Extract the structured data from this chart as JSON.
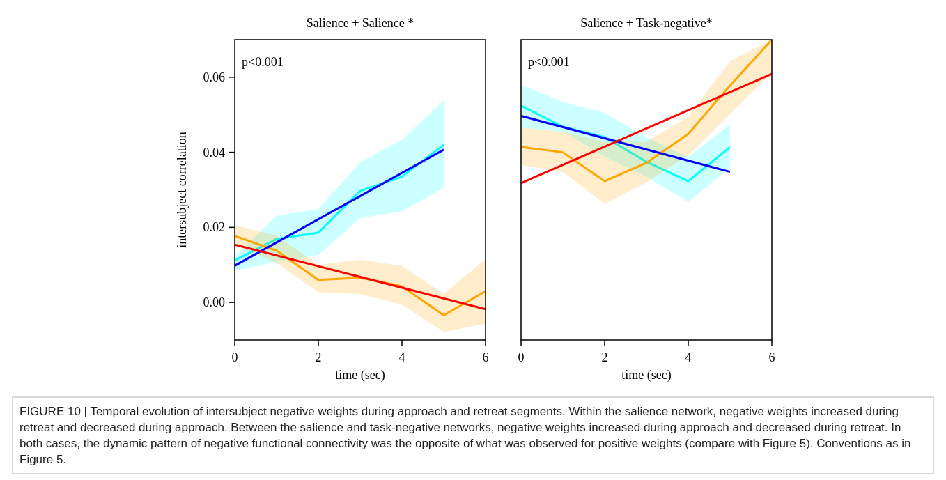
{
  "chart_data": [
    {
      "type": "line",
      "title": "Salience + Salience *",
      "xlabel": "time (sec)",
      "ylabel": "intersubject correlation",
      "annotations": [
        "p<0.001",
        "FIGURE 10 | Temporal evolution of intersubject negative weights during approach and retreat segments. Within the salience network, negative weights increased during retreat and decreased during approach. Between the salience and task-negative networks, negative weights increased during approach and decreased during retreat. In both cases, the dynamic pattern of negative functional connectivity was the opposite of what was observed for positive weights (compare with Figure 5). Conventions as in Figure 5."
      ],
      "xlim": [
        0,
        6
      ],
      "xticks": [
        0,
        2,
        4,
        6
      ],
      "ylim": [
        -0.01,
        0.07
      ],
      "yticks": [
        {
          "value": 0,
          "label": "0.00"
        },
        {
          "value": 0.02,
          "label": "0.02"
        },
        {
          "value": 0.04,
          "label": "0.04"
        },
        {
          "value": 0.06,
          "label": "0.06"
        }
      ],
      "grid": false,
      "series": [
        {
          "color": "#00ffff",
          "x": [
            0,
            1,
            2,
            3,
            4,
            5
          ],
          "values": [
            0.0112,
            0.0169,
            0.0186,
            0.0297,
            0.0335,
            0.042
          ],
          "lower": [
            0.0084,
            0.0108,
            0.0126,
            0.0225,
            0.0243,
            0.0305
          ],
          "upper": [
            0.0123,
            0.0231,
            0.0249,
            0.0374,
            0.0433,
            0.0538
          ]
        },
        {
          "color": "#ffa500",
          "x": [
            0,
            1,
            2,
            3,
            4,
            5,
            6
          ],
          "values": [
            0.0177,
            0.0138,
            0.006,
            0.0066,
            0.0043,
            -0.0034,
            0.003
          ],
          "lower": [
            0.0154,
            0.0105,
            0.0028,
            0.0022,
            -0.0006,
            -0.0078,
            -0.0057
          ],
          "upper": [
            0.0206,
            0.0178,
            0.01,
            0.0114,
            0.0097,
            0.0022,
            0.0116
          ]
        },
        {
          "color": "#0000ff",
          "x": [
            0,
            5
          ],
          "values": [
            0.0098,
            0.0407
          ]
        },
        {
          "color": "#ff0000",
          "x": [
            0,
            6
          ],
          "values": [
            0.0154,
            -0.0018
          ]
        }
      ]
    },
    {
      "type": "line",
      "title": "Salience + Task-negative*",
      "xlabel": "time (sec)",
      "annotations": [
        "p<0.001"
      ],
      "xlim": [
        0,
        6
      ],
      "xticks": [
        0,
        2,
        4,
        6
      ],
      "ylim": [
        -0.01,
        0.07
      ],
      "tick_labels": "x",
      "grid": false,
      "series": [
        {
          "color": "#00ffff",
          "x": [
            0,
            1,
            2,
            3,
            4,
            5
          ],
          "values": [
            0.0524,
            0.0468,
            0.044,
            0.0375,
            0.0323,
            0.0414
          ],
          "lower": [
            0.0465,
            0.0455,
            0.0388,
            0.0335,
            0.0268,
            0.036
          ],
          "upper": [
            0.058,
            0.0534,
            0.0505,
            0.044,
            0.0388,
            0.0474
          ]
        },
        {
          "color": "#ffa500",
          "x": [
            0,
            1,
            2,
            3,
            4,
            5,
            6
          ],
          "values": [
            0.0414,
            0.04,
            0.0323,
            0.0372,
            0.0449,
            0.0578,
            0.07
          ],
          "lower": [
            0.0366,
            0.0348,
            0.0263,
            0.032,
            0.0392,
            0.0502,
            0.0612
          ],
          "upper": [
            0.0465,
            0.0455,
            0.0428,
            0.0428,
            0.0495,
            0.0643,
            0.07
          ]
        },
        {
          "color": "#0000ff",
          "x": [
            0,
            5
          ],
          "values": [
            0.0497,
            0.0348
          ]
        },
        {
          "color": "#ff0000",
          "x": [
            0,
            6
          ],
          "values": [
            0.0318,
            0.0609
          ]
        }
      ]
    }
  ]
}
